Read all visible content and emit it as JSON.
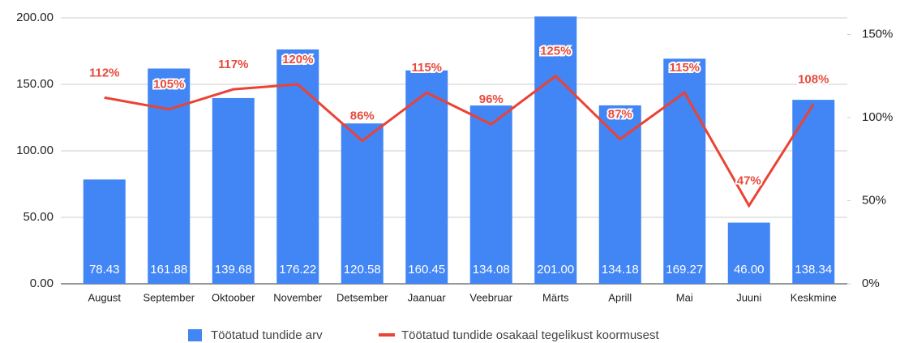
{
  "chart_data": {
    "type": "bar",
    "categories": [
      "August",
      "September",
      "Oktoober",
      "November",
      "Detsember",
      "Jaanuar",
      "Veebruar",
      "Märts",
      "Aprill",
      "Mai",
      "Juuni",
      "Keskmine"
    ],
    "series": [
      {
        "name": "Töötatud tundide arv",
        "color": "#4285f4",
        "type": "bar",
        "axis": "y",
        "values": [
          78.43,
          161.88,
          139.68,
          176.22,
          120.58,
          160.45,
          134.08,
          201.0,
          134.18,
          169.27,
          46.0,
          138.34
        ],
        "value_labels": [
          "78.43",
          "161.88",
          "139.68",
          "176.22",
          "120.58",
          "160.45",
          "134.08",
          "201.00",
          "134.18",
          "169.27",
          "46.00",
          "138.34"
        ]
      },
      {
        "name": "Töötatud tundide osakaal tegelikust koormusest",
        "color": "#ea4335",
        "type": "line",
        "axis": "y2",
        "values": [
          112,
          105,
          117,
          120,
          86,
          115,
          96,
          125,
          87,
          115,
          47,
          108
        ],
        "value_labels": [
          "112%",
          "105%",
          "117%",
          "120%",
          "86%",
          "115%",
          "96%",
          "125%",
          "87%",
          "115%",
          "47%",
          "108%"
        ]
      }
    ],
    "ylim": [
      0,
      200
    ],
    "yticks": [
      {
        "value": 0,
        "label": "0.00"
      },
      {
        "value": 50,
        "label": "50.00"
      },
      {
        "value": 100,
        "label": "100.00"
      },
      {
        "value": 150,
        "label": "150.00"
      },
      {
        "value": 200,
        "label": "200.00"
      }
    ],
    "y2lim": [
      0,
      160
    ],
    "y2ticks": [
      {
        "value": 0,
        "label": "0%"
      },
      {
        "value": 50,
        "label": "50%"
      },
      {
        "value": 100,
        "label": "100%"
      },
      {
        "value": 150,
        "label": "150%"
      }
    ],
    "grid": true
  }
}
